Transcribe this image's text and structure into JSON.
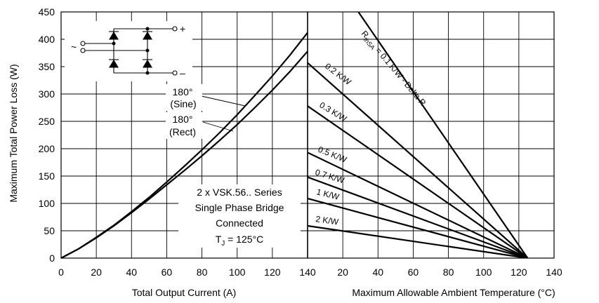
{
  "chart_data": [
    {
      "type": "line",
      "xlabel": "Total Output Current (A)",
      "ylabel": "Maximum Total Power Loss (W)",
      "xlim": [
        0,
        140
      ],
      "ylim": [
        0,
        450
      ],
      "x_ticks": [
        "0",
        "20",
        "40",
        "60",
        "80",
        "100",
        "120",
        "140"
      ],
      "y_ticks": [
        "0",
        "50",
        "100",
        "150",
        "200",
        "250",
        "300",
        "350",
        "400",
        "450"
      ],
      "grid": true,
      "series": [
        {
          "name": "180° (Sine)",
          "x": [
            0,
            10,
            20,
            30,
            40,
            50,
            60,
            70,
            80,
            90,
            100,
            110,
            120,
            130,
            140
          ],
          "y": [
            0,
            17,
            38,
            60,
            85,
            111,
            139,
            168,
            198,
            229,
            262,
            297,
            333,
            371,
            412
          ]
        },
        {
          "name": "180° (Rect)",
          "x": [
            0,
            10,
            20,
            30,
            40,
            50,
            60,
            70,
            80,
            90,
            100,
            110,
            120,
            130,
            140
          ],
          "y": [
            0,
            17,
            37,
            59,
            83,
            108,
            134,
            160,
            187,
            215,
            244,
            275,
            307,
            341,
            378
          ]
        }
      ],
      "curve_labels": [
        {
          "line1": "180°",
          "line2": "(Sine)"
        },
        {
          "line1": "180°",
          "line2": "(Rect)"
        }
      ],
      "annotation": {
        "line1": "2 x VSK.56.. Series",
        "line2": "Single Phase Bridge",
        "line3": "Connected",
        "tj_prefix": "T",
        "tj_sub": "J",
        "tj_suffix": " = 125°C"
      },
      "schematic": {
        "plus": "+",
        "minus": "–",
        "ac": "~"
      }
    },
    {
      "type": "line",
      "xlabel": "Maximum Allowable Ambient Temperature (°C)",
      "xlim": [
        0,
        140
      ],
      "ylim": [
        0,
        450
      ],
      "x_ticks": [
        "20",
        "40",
        "60",
        "80",
        "100",
        "120",
        "140"
      ],
      "grid": true,
      "series": [
        {
          "name": "0.1 K/W - Delta R",
          "x": [
            0,
            125
          ],
          "y": [
            585,
            0
          ]
        },
        {
          "name": "0.2 K/W",
          "x": [
            0,
            125
          ],
          "y": [
            357,
            0
          ]
        },
        {
          "name": "0.3 K/W",
          "x": [
            0,
            125
          ],
          "y": [
            278,
            0
          ]
        },
        {
          "name": "0.5 K/W",
          "x": [
            0,
            125
          ],
          "y": [
            193,
            0
          ]
        },
        {
          "name": "0.7 K/W",
          "x": [
            0,
            125
          ],
          "y": [
            148,
            0
          ]
        },
        {
          "name": "1 K/W",
          "x": [
            0,
            125
          ],
          "y": [
            109,
            0
          ]
        },
        {
          "name": "2 K/W",
          "x": [
            0,
            125
          ],
          "y": [
            59,
            0
          ]
        }
      ],
      "line_labels": {
        "rth_prefix": "R",
        "rth_sub": "thSA",
        "top_label": " = 0.1 K/W - Delta R",
        "others": [
          "0.2 K/W",
          "0.3 K/W",
          "0.5 K/W",
          "0.7 K/W",
          "1 K/W",
          "2 K/W"
        ]
      }
    }
  ]
}
